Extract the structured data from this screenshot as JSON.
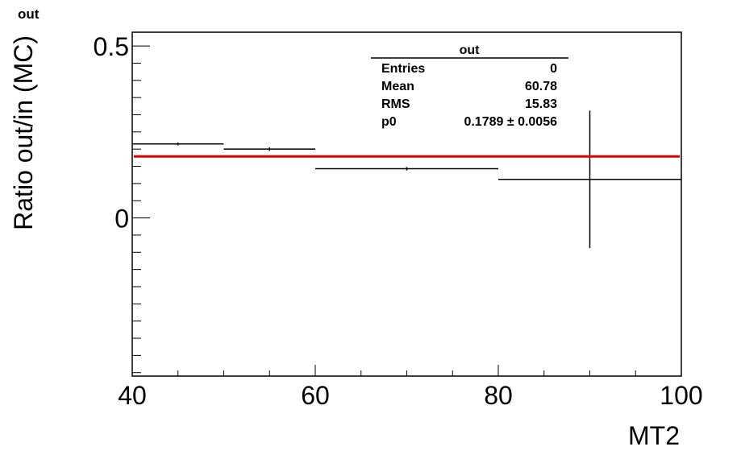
{
  "chart_data": {
    "type": "scatter",
    "title": "out",
    "xlabel": "MT2",
    "ylabel": "Ratio out/in (MC)",
    "xlim": [
      40,
      100
    ],
    "ylim": [
      -0.46,
      0.54
    ],
    "xticks": [
      40,
      60,
      80,
      100
    ],
    "yticks": [
      0,
      0.5
    ],
    "xtick_labels": [
      "40",
      "60",
      "80",
      "100"
    ],
    "ytick_labels": [
      "0",
      "0.5"
    ],
    "points": [
      {
        "xlow": 40,
        "xhigh": 50,
        "x": 45,
        "y": 0.215,
        "yerr": 0.004
      },
      {
        "xlow": 50,
        "xhigh": 60,
        "x": 55,
        "y": 0.2,
        "yerr": 0.005
      },
      {
        "xlow": 60,
        "xhigh": 80,
        "x": 70,
        "y": 0.143,
        "yerr": 0.005
      },
      {
        "xlow": 80,
        "xhigh": 100,
        "x": 90,
        "y": 0.112,
        "yerr": 0.2
      }
    ],
    "fit": {
      "name": "p0",
      "value": 0.1789,
      "error": 0.0056,
      "color": "#e00000"
    },
    "stats": {
      "title": "out",
      "rows": [
        {
          "label": "Entries",
          "value": "0"
        },
        {
          "label": "Mean",
          "value": "60.78"
        },
        {
          "label": "RMS",
          "value": "15.83"
        },
        {
          "label": "p0",
          "value": "0.1789 ± 0.0056"
        }
      ]
    }
  }
}
